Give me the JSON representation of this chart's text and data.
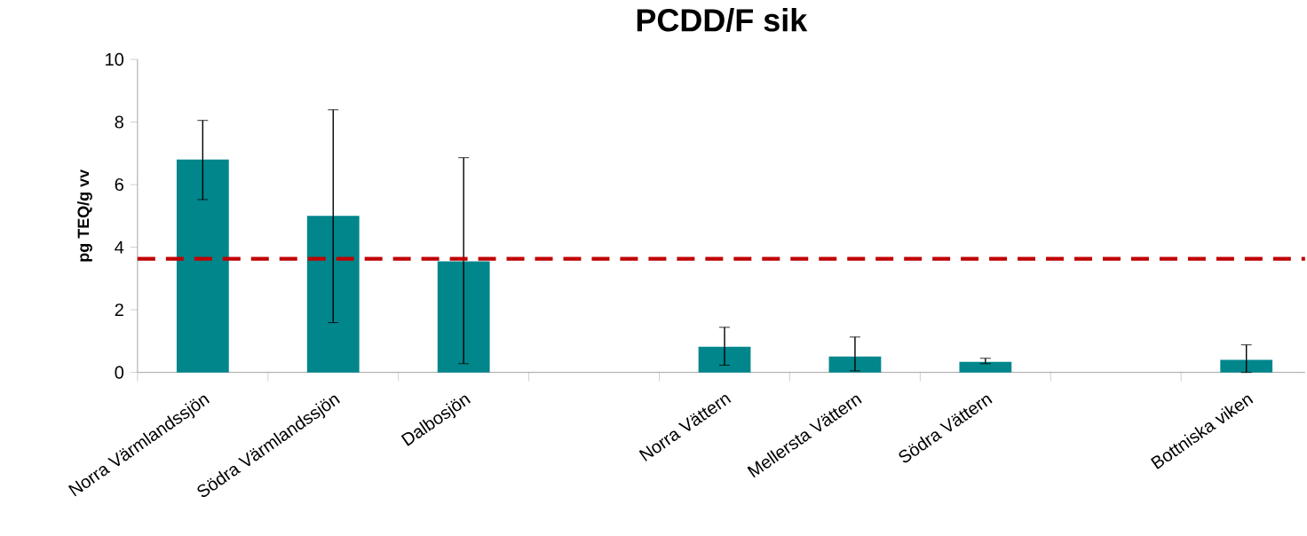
{
  "chart_data": {
    "type": "bar",
    "title": "PCDD/F sik",
    "ylabel": "pg TEQ/g vv",
    "categories": [
      "Norra Värmlandssjön",
      "Södra Värmlandssjön",
      "Dalbosjön",
      null,
      "Norra Vättern",
      "Mellersta Vättern",
      "Södra Vättern",
      null,
      "Bottniska viken"
    ],
    "values": [
      6.8,
      5.0,
      3.55,
      null,
      0.82,
      0.51,
      0.34,
      null,
      0.4
    ],
    "errors": [
      [
        5.52,
        8.05
      ],
      [
        1.59,
        8.39
      ],
      [
        0.28,
        6.86
      ],
      null,
      [
        0.23,
        1.44
      ],
      [
        0.05,
        1.13
      ],
      [
        0.28,
        0.45
      ],
      null,
      [
        0,
        0.88
      ]
    ],
    "color": "#00868b",
    "ylim": [
      0,
      10
    ],
    "yticks": [
      0,
      2,
      4,
      6,
      8,
      10
    ],
    "ref_lines": [
      {
        "axis": "y",
        "value": 3.63,
        "color": "#c00000",
        "line_style": "dashed"
      }
    ],
    "grid": false
  }
}
